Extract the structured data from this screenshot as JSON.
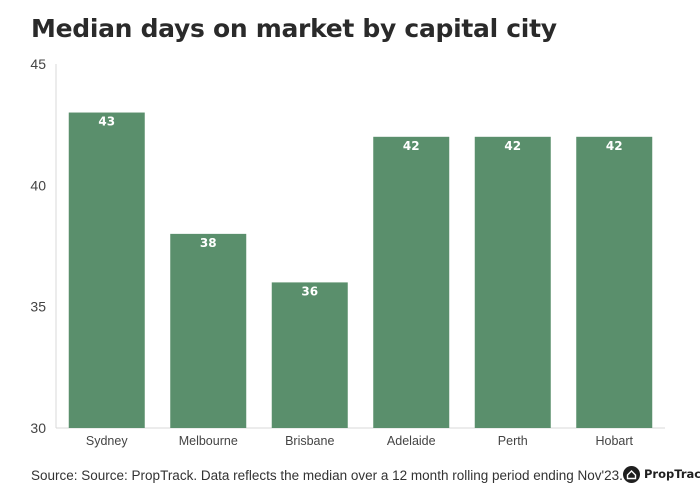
{
  "chart_data": {
    "type": "bar",
    "title": "Median days on market by capital city",
    "categories": [
      "Sydney",
      "Melbourne",
      "Brisbane",
      "Adelaide",
      "Perth",
      "Hobart"
    ],
    "values": [
      43,
      38,
      36,
      42,
      42,
      42
    ],
    "data_labels": [
      "43",
      "38",
      "36",
      "42",
      "42",
      "42"
    ],
    "ylim": [
      30,
      45
    ],
    "yticks": [
      30,
      35,
      40,
      45
    ],
    "xlabel": "",
    "ylabel": "",
    "grid": false,
    "bar_color": "#5a8f6c",
    "label_color": "#ffffff"
  },
  "source": "Source: Source: PropTrack. Data reflects the median over a 12 month rolling period ending Nov'23.",
  "logo": {
    "text": "PropTrack",
    "icon": "proptrack-logo-icon"
  }
}
